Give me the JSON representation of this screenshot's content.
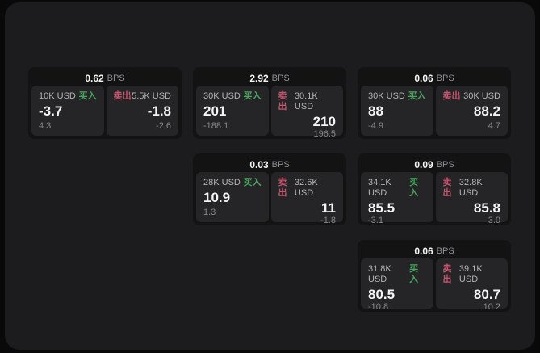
{
  "labels": {
    "buy": "买入",
    "sell": "卖出",
    "bps": "BPS"
  },
  "colors": {
    "buy_text": "#4aa45e",
    "sell_text": "#c2566e",
    "surface": "#1c1c1e",
    "card_bg": "#131314",
    "panel_bg": "#252528"
  },
  "cards": [
    {
      "bps": "0.62",
      "grid": {
        "row": 1,
        "col": 1
      },
      "buy": {
        "amount": "10K USD",
        "value": "-3.7",
        "sub": "4.3"
      },
      "sell": {
        "amount": "5.5K USD",
        "value": "-1.8",
        "sub": "-2.6"
      }
    },
    {
      "bps": "2.92",
      "grid": {
        "row": 1,
        "col": 2
      },
      "buy": {
        "amount": "30K USD",
        "value": "201",
        "sub": "-188.1"
      },
      "sell": {
        "amount": "30.1K USD",
        "value": "210",
        "sub": "196.5"
      }
    },
    {
      "bps": "0.06",
      "grid": {
        "row": 1,
        "col": 3
      },
      "buy": {
        "amount": "30K USD",
        "value": "88",
        "sub": "-4.9"
      },
      "sell": {
        "amount": "30K USD",
        "value": "88.2",
        "sub": "4.7"
      }
    },
    {
      "bps": "0.03",
      "grid": {
        "row": 2,
        "col": 2
      },
      "buy": {
        "amount": "28K USD",
        "value": "10.9",
        "sub": "1.3"
      },
      "sell": {
        "amount": "32.6K USD",
        "value": "11",
        "sub": "-1.8"
      }
    },
    {
      "bps": "0.09",
      "grid": {
        "row": 2,
        "col": 3
      },
      "buy": {
        "amount": "34.1K USD",
        "value": "85.5",
        "sub": "-3.1"
      },
      "sell": {
        "amount": "32.8K USD",
        "value": "85.8",
        "sub": "3.0"
      }
    },
    {
      "bps": "0.06",
      "grid": {
        "row": 3,
        "col": 3
      },
      "buy": {
        "amount": "31.8K USD",
        "value": "80.5",
        "sub": "-10.8"
      },
      "sell": {
        "amount": "39.1K USD",
        "value": "80.7",
        "sub": "10.2"
      }
    }
  ]
}
